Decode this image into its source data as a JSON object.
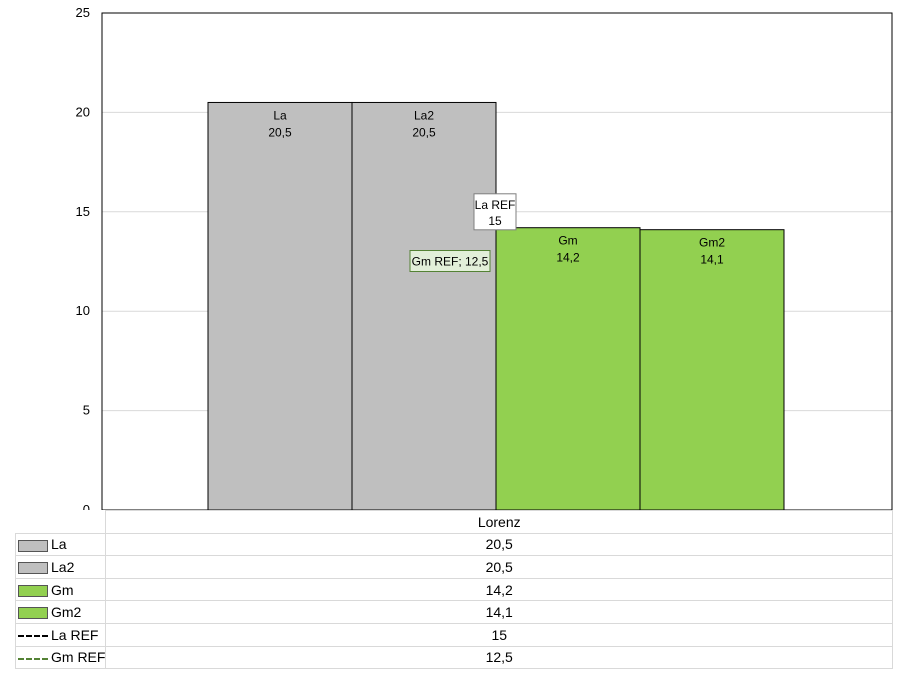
{
  "chart_data": {
    "type": "bar",
    "categories": [
      "Lorenz"
    ],
    "ylim": [
      0,
      25
    ],
    "yticks": [
      0,
      5,
      10,
      15,
      20,
      25
    ],
    "grid": true,
    "series": [
      {
        "name": "La",
        "value": 20.5,
        "value_label": "20,5",
        "color": "#bfbfbf"
      },
      {
        "name": "La2",
        "value": 20.5,
        "value_label": "20,5",
        "color": "#bfbfbf"
      },
      {
        "name": "Gm",
        "value": 14.2,
        "value_label": "14,2",
        "color": "#92d050"
      },
      {
        "name": "Gm2",
        "value": 14.1,
        "value_label": "14,1",
        "color": "#92d050"
      }
    ],
    "reference_lines": [
      {
        "name": "La REF",
        "value": 15,
        "value_label": "15",
        "color": "#000000",
        "style": "dashed"
      },
      {
        "name": "Gm REF",
        "value": 12.5,
        "value_label": "12,5",
        "color": "#548235",
        "style": "dashed"
      }
    ],
    "data_table": {
      "column_header": "Lorenz",
      "rows": [
        {
          "name": "La",
          "value": "20,5",
          "key": "swatch",
          "color": "#bfbfbf"
        },
        {
          "name": "La2",
          "value": "20,5",
          "key": "swatch",
          "color": "#bfbfbf"
        },
        {
          "name": "Gm",
          "value": "14,2",
          "key": "swatch",
          "color": "#92d050"
        },
        {
          "name": "Gm2",
          "value": "14,1",
          "key": "swatch",
          "color": "#92d050"
        },
        {
          "name": "La REF",
          "value": "15",
          "key": "dash",
          "color": "#000000"
        },
        {
          "name": "Gm REF",
          "value": "12,5",
          "key": "dash",
          "color": "#548235"
        }
      ]
    },
    "ref_label_texts": {
      "la_ref_line1": "La REF",
      "la_ref_line2": "15",
      "gm_ref": "Gm REF; 12,5"
    }
  }
}
